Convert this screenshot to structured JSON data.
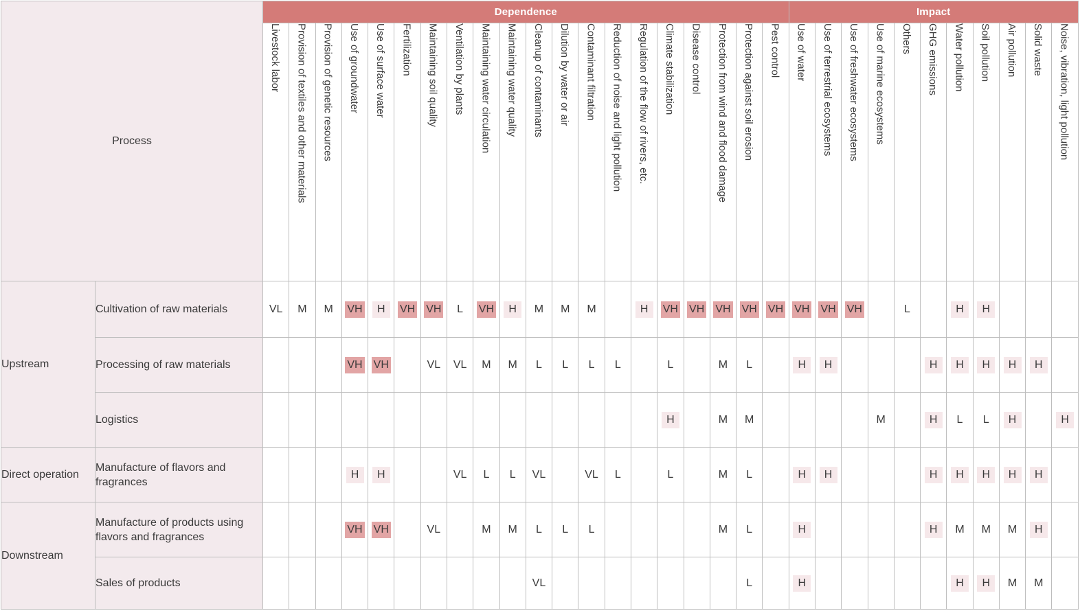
{
  "table": {
    "process_header": "Process",
    "groups": [
      {
        "name": "Dependence",
        "span": 20
      },
      {
        "name": "Impact",
        "span": 11
      }
    ],
    "columns": [
      "Livestock labor",
      "Provision of textiles and other materials",
      "Provision of genetic resources",
      "Use of groundwater",
      "Use of surface water",
      "Fertilization",
      "Maintaining soil quality",
      "Ventilation by plants",
      "Maintaining water circulation",
      "Maintaining water quality",
      "Cleanup of contaminants",
      "Dilution by water or air",
      "Contaminant filtration",
      "Reduction of noise and light pollution",
      "Regulation of the flow of rivers, etc.",
      "Climate stabilization",
      "Disease control",
      "Protection from wind and flood damage",
      "Protection against soil erosion",
      "Pest control",
      "Use of water",
      "Use of terrestrial ecosystems",
      "Use of freshwater ecosystems",
      "Use of marine ecosystems",
      "Others",
      "GHG emissions",
      "Water pollution",
      "Soil pollution",
      "Air pollution",
      "Solid waste",
      "Noise, vibration, light pollution"
    ],
    "stages": [
      {
        "name": "Upstream",
        "rowspan": 3
      },
      {
        "name": "Direct operation",
        "rowspan": 1
      },
      {
        "name": "Downstream",
        "rowspan": 2
      }
    ],
    "rows": [
      {
        "process": "Cultivation of raw materials",
        "values": [
          "VL",
          "M",
          "M",
          "VH",
          "H",
          "VH",
          "VH",
          "L",
          "VH",
          "H",
          "M",
          "M",
          "M",
          "",
          "H",
          "VH",
          "VH",
          "VH",
          "VH",
          "VH",
          "VH",
          "VH",
          "VH",
          "",
          "L",
          "",
          "H",
          "H",
          "",
          "",
          ""
        ]
      },
      {
        "process": "Processing of raw materials",
        "values": [
          "",
          "",
          "",
          "VH",
          "VH",
          "",
          "VL",
          "VL",
          "M",
          "M",
          "L",
          "L",
          "L",
          "L",
          "",
          "L",
          "",
          "M",
          "L",
          "",
          "H",
          "H",
          "",
          "",
          "",
          "H",
          "H",
          "H",
          "H",
          "H",
          ""
        ]
      },
      {
        "process": "Logistics",
        "values": [
          "",
          "",
          "",
          "",
          "",
          "",
          "",
          "",
          "",
          "",
          "",
          "",
          "",
          "",
          "",
          "H",
          "",
          "M",
          "M",
          "",
          "",
          "",
          "",
          "M",
          "",
          "H",
          "L",
          "L",
          "H",
          "",
          "H"
        ]
      },
      {
        "process": "Manufacture of flavors and fragrances",
        "values": [
          "",
          "",
          "",
          "H",
          "H",
          "",
          "",
          "VL",
          "L",
          "L",
          "VL",
          "",
          "VL",
          "L",
          "",
          "L",
          "",
          "M",
          "L",
          "",
          "H",
          "H",
          "",
          "",
          "",
          "H",
          "H",
          "H",
          "H",
          "H",
          ""
        ]
      },
      {
        "process": "Manufacture of products using flavors and fragrances",
        "values": [
          "",
          "",
          "",
          "VH",
          "VH",
          "",
          "VL",
          "",
          "M",
          "M",
          "L",
          "L",
          "L",
          "",
          "",
          "",
          "",
          "M",
          "L",
          "",
          "H",
          "",
          "",
          "",
          "",
          "H",
          "M",
          "M",
          "M",
          "H",
          ""
        ]
      },
      {
        "process": "Sales of products",
        "values": [
          "",
          "",
          "",
          "",
          "",
          "",
          "",
          "",
          "",
          "",
          "VL",
          "",
          "",
          "",
          "",
          "",
          "",
          "",
          "L",
          "",
          "H",
          "",
          "",
          "",
          "",
          "",
          "H",
          "H",
          "M",
          "M",
          ""
        ]
      }
    ]
  }
}
